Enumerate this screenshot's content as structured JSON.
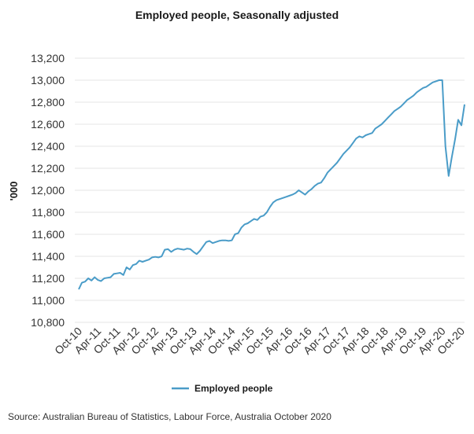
{
  "chart_data": {
    "type": "line",
    "title": "Employed people, Seasonally adjusted",
    "xlabel": "",
    "ylabel": "'000",
    "ylim": [
      10800,
      13200
    ],
    "yticks": [
      10800,
      11000,
      11200,
      11400,
      11600,
      11800,
      12000,
      12200,
      12400,
      12600,
      12800,
      13000,
      13200
    ],
    "ytick_labels": [
      "10,800",
      "11,000",
      "11,200",
      "11,400",
      "11,600",
      "11,800",
      "12,000",
      "12,200",
      "12,400",
      "12,600",
      "12,800",
      "13,000",
      "13,200"
    ],
    "xtick_labels": [
      "Oct-10",
      "Apr-11",
      "Oct-11",
      "Apr-12",
      "Oct-12",
      "Apr-13",
      "Oct-13",
      "Apr-14",
      "Oct-14",
      "Apr-15",
      "Oct-15",
      "Apr-16",
      "Oct-16",
      "Apr-17",
      "Oct-17",
      "Apr-18",
      "Oct-18",
      "Apr-19",
      "Oct-19",
      "Apr-20",
      "Oct-20"
    ],
    "xtick_month_index": [
      0,
      6,
      12,
      18,
      24,
      30,
      36,
      42,
      48,
      54,
      60,
      66,
      72,
      78,
      84,
      90,
      96,
      102,
      108,
      114,
      120
    ],
    "grid": true,
    "legend": "bottom-center",
    "color": "#4a9cc8",
    "series": [
      {
        "name": "Employed people",
        "values": [
          11100,
          11160,
          11170,
          11200,
          11180,
          11210,
          11185,
          11175,
          11200,
          11205,
          11210,
          11240,
          11245,
          11250,
          11230,
          11300,
          11280,
          11320,
          11330,
          11360,
          11350,
          11360,
          11370,
          11390,
          11395,
          11390,
          11400,
          11460,
          11465,
          11440,
          11460,
          11470,
          11465,
          11460,
          11470,
          11465,
          11440,
          11420,
          11450,
          11490,
          11530,
          11540,
          11520,
          11530,
          11540,
          11545,
          11545,
          11540,
          11545,
          11600,
          11610,
          11660,
          11690,
          11700,
          11720,
          11740,
          11730,
          11760,
          11770,
          11800,
          11850,
          11890,
          11910,
          11920,
          11930,
          11940,
          11950,
          11960,
          11975,
          12000,
          11980,
          11960,
          11990,
          12010,
          12040,
          12060,
          12070,
          12110,
          12160,
          12190,
          12220,
          12250,
          12290,
          12330,
          12360,
          12390,
          12430,
          12470,
          12490,
          12480,
          12500,
          12510,
          12520,
          12560,
          12580,
          12600,
          12630,
          12660,
          12690,
          12720,
          12740,
          12760,
          12790,
          12820,
          12840,
          12860,
          12890,
          12910,
          12930,
          12940,
          12960,
          12980,
          12990,
          13000,
          13000,
          12400,
          12130,
          12300,
          12460,
          12640,
          12590,
          12780
        ]
      }
    ]
  },
  "source": "Source: Australian Bureau of Statistics, Labour Force, Australia October 2020"
}
